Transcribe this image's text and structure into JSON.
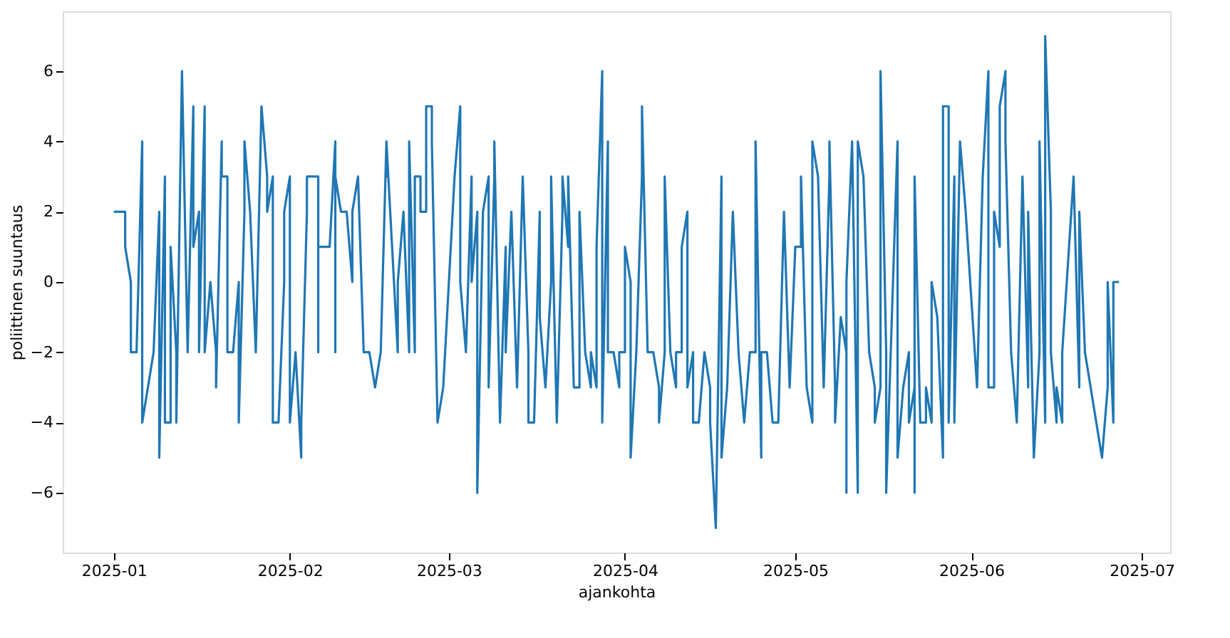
{
  "chart_data": {
    "type": "line",
    "xlabel": "ajankohta",
    "ylabel": "poliittinen suuntaus",
    "grid": false,
    "xlim": [
      "2024-12-23",
      "2025-07-06"
    ],
    "xticks": [
      {
        "value": "2025-01-01",
        "label": "2025-01"
      },
      {
        "value": "2025-02-01",
        "label": "2025-02"
      },
      {
        "value": "2025-03-01",
        "label": "2025-03"
      },
      {
        "value": "2025-04-01",
        "label": "2025-04"
      },
      {
        "value": "2025-05-01",
        "label": "2025-05"
      },
      {
        "value": "2025-06-01",
        "label": "2025-06"
      },
      {
        "value": "2025-07-01",
        "label": "2025-07"
      }
    ],
    "ylim": [
      -7.7,
      7.7
    ],
    "yticks": [
      -6,
      -4,
      -2,
      0,
      2,
      4,
      6
    ],
    "x": [
      "2025-01-01",
      "2025-01-03",
      "2025-01-03",
      "2025-01-04",
      "2025-01-04",
      "2025-01-05",
      "2025-01-06",
      "2025-01-06",
      "2025-01-08",
      "2025-01-08",
      "2025-01-09",
      "2025-01-09",
      "2025-01-10",
      "2025-01-10",
      "2025-01-11",
      "2025-01-11",
      "2025-01-12",
      "2025-01-12",
      "2025-01-13",
      "2025-01-14",
      "2025-01-15",
      "2025-01-15",
      "2025-01-16",
      "2025-01-16",
      "2025-01-17",
      "2025-01-17",
      "2025-01-18",
      "2025-01-19",
      "2025-01-19",
      "2025-01-20",
      "2025-01-20",
      "2025-01-21",
      "2025-01-21",
      "2025-01-22",
      "2025-01-23",
      "2025-01-23",
      "2025-01-24",
      "2025-01-24",
      "2025-01-25",
      "2025-01-26",
      "2025-01-27",
      "2025-01-28",
      "2025-01-28",
      "2025-01-29",
      "2025-01-29",
      "2025-01-30",
      "2025-01-31",
      "2025-01-31",
      "2025-02-01",
      "2025-02-01",
      "2025-02-02",
      "2025-02-02",
      "2025-02-03",
      "2025-02-03",
      "2025-02-04",
      "2025-02-04",
      "2025-02-06",
      "2025-02-06",
      "2025-02-06",
      "2025-02-08",
      "2025-02-09",
      "2025-02-09",
      "2025-02-09",
      "2025-02-10",
      "2025-02-11",
      "2025-02-12",
      "2025-02-12",
      "2025-02-13",
      "2025-02-14",
      "2025-02-15",
      "2025-02-16",
      "2025-02-17",
      "2025-02-18",
      "2025-02-18",
      "2025-02-18",
      "2025-02-20",
      "2025-02-20",
      "2025-02-21",
      "2025-02-22",
      "2025-02-22",
      "2025-02-23",
      "2025-02-23",
      "2025-02-24",
      "2025-02-24",
      "2025-02-25",
      "2025-02-25",
      "2025-02-26",
      "2025-02-26",
      "2025-02-27",
      "2025-02-28",
      "2025-03-02",
      "2025-03-03",
      "2025-03-03",
      "2025-03-04",
      "2025-03-05",
      "2025-03-05",
      "2025-03-06",
      "2025-03-06",
      "2025-03-07",
      "2025-03-08",
      "2025-03-08",
      "2025-03-09",
      "2025-03-09",
      "2025-03-10",
      "2025-03-11",
      "2025-03-11",
      "2025-03-12",
      "2025-03-13",
      "2025-03-14",
      "2025-03-15",
      "2025-03-15",
      "2025-03-16",
      "2025-03-17",
      "2025-03-17",
      "2025-03-18",
      "2025-03-19",
      "2025-03-19",
      "2025-03-20",
      "2025-03-21",
      "2025-03-21",
      "2025-03-22",
      "2025-03-22",
      "2025-03-23",
      "2025-03-24",
      "2025-03-24",
      "2025-03-25",
      "2025-03-25",
      "2025-03-26",
      "2025-03-26",
      "2025-03-27",
      "2025-03-27",
      "2025-03-28",
      "2025-03-28",
      "2025-03-29",
      "2025-03-29",
      "2025-03-30",
      "2025-03-30",
      "2025-03-31",
      "2025-03-31",
      "2025-04-01",
      "2025-04-01",
      "2025-04-02",
      "2025-04-02",
      "2025-04-02",
      "2025-04-03",
      "2025-04-04",
      "2025-04-04",
      "2025-04-05",
      "2025-04-05",
      "2025-04-06",
      "2025-04-07",
      "2025-04-07",
      "2025-04-08",
      "2025-04-08",
      "2025-04-09",
      "2025-04-09",
      "2025-04-10",
      "2025-04-10",
      "2025-04-11",
      "2025-04-11",
      "2025-04-12",
      "2025-04-12",
      "2025-04-13",
      "2025-04-13",
      "2025-04-14",
      "2025-04-15",
      "2025-04-15",
      "2025-04-16",
      "2025-04-16",
      "2025-04-17",
      "2025-04-18",
      "2025-04-18",
      "2025-04-19",
      "2025-04-20",
      "2025-04-21",
      "2025-04-22",
      "2025-04-23",
      "2025-04-24",
      "2025-04-24",
      "2025-04-25",
      "2025-04-25",
      "2025-04-26",
      "2025-04-27",
      "2025-04-28",
      "2025-04-29",
      "2025-04-30",
      "2025-05-01",
      "2025-05-02",
      "2025-05-02",
      "2025-05-03",
      "2025-05-04",
      "2025-05-04",
      "2025-05-05",
      "2025-05-06",
      "2025-05-07",
      "2025-05-07",
      "2025-05-08",
      "2025-05-08",
      "2025-05-09",
      "2025-05-10",
      "2025-05-10",
      "2025-05-10",
      "2025-05-11",
      "2025-05-12",
      "2025-05-12",
      "2025-05-13",
      "2025-05-14",
      "2025-05-14",
      "2025-05-15",
      "2025-05-15",
      "2025-05-16",
      "2025-05-16",
      "2025-05-17",
      "2025-05-17",
      "2025-05-18",
      "2025-05-19",
      "2025-05-19",
      "2025-05-20",
      "2025-05-21",
      "2025-05-21",
      "2025-05-22",
      "2025-05-22",
      "2025-05-22",
      "2025-05-23",
      "2025-05-24",
      "2025-05-24",
      "2025-05-25",
      "2025-05-25",
      "2025-05-26",
      "2025-05-27",
      "2025-05-27",
      "2025-05-28",
      "2025-05-28",
      "2025-05-29",
      "2025-05-29",
      "2025-05-30",
      "2025-05-31",
      "2025-06-02",
      "2025-06-03",
      "2025-06-04",
      "2025-06-04",
      "2025-06-05",
      "2025-06-05",
      "2025-06-06",
      "2025-06-06",
      "2025-06-07",
      "2025-06-07",
      "2025-06-08",
      "2025-06-08",
      "2025-06-09",
      "2025-06-10",
      "2025-06-10",
      "2025-06-11",
      "2025-06-11",
      "2025-06-12",
      "2025-06-13",
      "2025-06-13",
      "2025-06-14",
      "2025-06-14",
      "2025-06-15",
      "2025-06-15",
      "2025-06-16",
      "2025-06-16",
      "2025-06-17",
      "2025-06-17",
      "2025-06-19",
      "2025-06-20",
      "2025-06-20",
      "2025-06-21",
      "2025-06-24",
      "2025-06-25",
      "2025-06-25",
      "2025-06-26",
      "2025-06-26",
      "2025-06-27"
    ],
    "series": [
      {
        "color": "#1f77b4",
        "values": [
          2,
          2,
          1,
          0,
          -2,
          -2,
          4,
          -4,
          -2,
          -2,
          2,
          -5,
          3,
          -4,
          -4,
          1,
          -2,
          -4,
          6,
          -2,
          5,
          1,
          2,
          -2,
          5,
          -2,
          0,
          -2,
          -3,
          4,
          3,
          3,
          -2,
          -2,
          0,
          -4,
          2,
          4,
          2,
          -2,
          5,
          3,
          2,
          3,
          -4,
          -4,
          0,
          2,
          3,
          -4,
          -2,
          -2,
          -5,
          -4,
          2,
          3,
          3,
          -2,
          1,
          1,
          4,
          -2,
          3,
          2,
          2,
          0,
          2,
          3,
          -2,
          -2,
          -3,
          -2,
          4,
          3,
          4,
          -2,
          0,
          2,
          -2,
          4,
          -2,
          3,
          3,
          2,
          2,
          5,
          5,
          4,
          -4,
          -3,
          3,
          5,
          0,
          -2,
          3,
          0,
          2,
          -6,
          2,
          3,
          -3,
          3,
          4,
          -4,
          1,
          -2,
          2,
          -3,
          3,
          -2,
          -4,
          -4,
          2,
          -1,
          -3,
          0,
          3,
          -4,
          2,
          3,
          1,
          3,
          -3,
          -3,
          2,
          -2,
          -2,
          -3,
          -2,
          -3,
          1,
          6,
          -4,
          4,
          -2,
          -2,
          -2,
          -3,
          -2,
          -2,
          1,
          0,
          -4,
          -5,
          -2,
          3,
          5,
          -2,
          -2,
          -2,
          -3,
          -4,
          -2,
          3,
          -2,
          -2,
          -3,
          -2,
          -2,
          1,
          2,
          -3,
          -2,
          -4,
          -4,
          -2,
          -2,
          -3,
          -4,
          -7,
          3,
          -5,
          -3,
          2,
          -2,
          -4,
          -2,
          -2,
          4,
          -5,
          -2,
          -2,
          -4,
          -4,
          2,
          -3,
          1,
          1,
          3,
          -3,
          -4,
          4,
          3,
          -3,
          3,
          4,
          -3,
          -4,
          -1,
          -2,
          -6,
          0,
          4,
          -6,
          4,
          3,
          -2,
          -2,
          -3,
          -4,
          -3,
          6,
          -2,
          -6,
          -1,
          4,
          -5,
          -3,
          -2,
          -4,
          -3,
          -6,
          3,
          -4,
          -4,
          -3,
          -4,
          0,
          -1,
          -5,
          5,
          5,
          -4,
          3,
          -4,
          4,
          2,
          -3,
          3,
          6,
          -3,
          -3,
          2,
          1,
          5,
          6,
          4,
          -2,
          -2,
          -4,
          3,
          3,
          -3,
          2,
          -5,
          -2,
          4,
          -4,
          7,
          2,
          -2,
          -4,
          -3,
          -4,
          -2,
          3,
          -3,
          2,
          -2,
          -5,
          -3,
          0,
          -4,
          0,
          0
        ]
      }
    ]
  }
}
